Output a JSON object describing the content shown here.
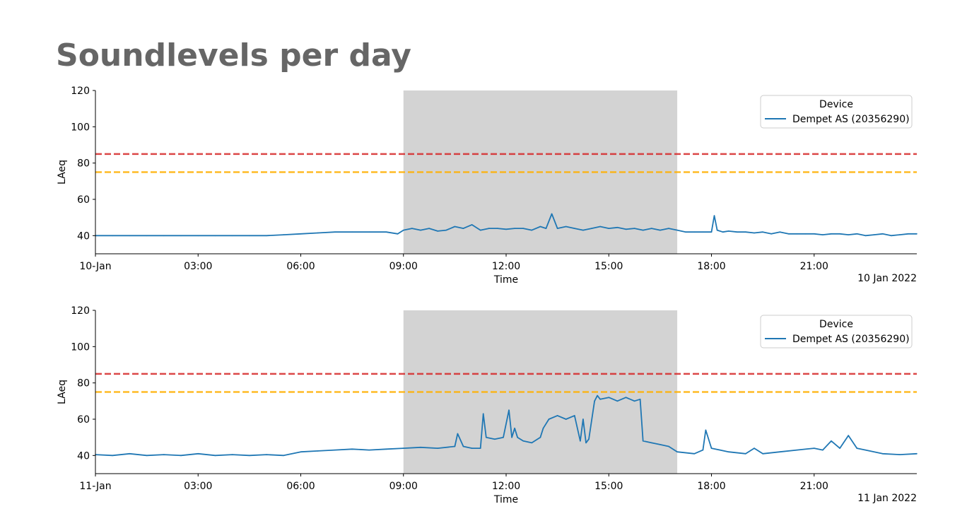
{
  "title": "Soundlevels per day",
  "colors": {
    "series": "#1f77b4",
    "threshold_high": "#d62728",
    "threshold_low": "#ffb000",
    "shaded_period": "#d3d3d3"
  },
  "chart_data": [
    {
      "type": "line",
      "xlabel": "Time",
      "ylabel": "LAeq",
      "date_label": "10 Jan 2022",
      "xlim": [
        "00:00",
        "24:00"
      ],
      "ylim": [
        30,
        120
      ],
      "yticks": [
        40,
        60,
        80,
        100,
        120
      ],
      "xtick_labels": [
        "10-Jan",
        "03:00",
        "06:00",
        "09:00",
        "12:00",
        "15:00",
        "18:00",
        "21:00"
      ],
      "shaded_period": [
        "09:00",
        "17:00"
      ],
      "thresholds": [
        {
          "value": 85,
          "style": "dashed",
          "color": "#d62728"
        },
        {
          "value": 75,
          "style": "dashed",
          "color": "#ffb000"
        }
      ],
      "legend": {
        "title": "Device",
        "position": "top-right"
      },
      "grid": false,
      "series": [
        {
          "name": "Dempet AS (20356290)",
          "x": [
            "00:00",
            "00:30",
            "01:00",
            "01:30",
            "02:00",
            "02:30",
            "03:00",
            "03:30",
            "04:00",
            "04:30",
            "05:00",
            "05:30",
            "06:00",
            "06:30",
            "07:00",
            "07:30",
            "08:00",
            "08:30",
            "08:50",
            "09:00",
            "09:15",
            "09:30",
            "09:45",
            "10:00",
            "10:15",
            "10:30",
            "10:45",
            "11:00",
            "11:15",
            "11:30",
            "11:45",
            "12:00",
            "12:15",
            "12:30",
            "12:45",
            "13:00",
            "13:10",
            "13:20",
            "13:30",
            "13:45",
            "14:00",
            "14:15",
            "14:30",
            "14:45",
            "15:00",
            "15:15",
            "15:30",
            "15:45",
            "16:00",
            "16:15",
            "16:30",
            "16:45",
            "17:00",
            "17:15",
            "17:30",
            "17:45",
            "18:00",
            "18:05",
            "18:10",
            "18:20",
            "18:30",
            "18:45",
            "19:00",
            "19:15",
            "19:30",
            "19:45",
            "20:00",
            "20:15",
            "20:30",
            "20:45",
            "21:00",
            "21:15",
            "21:30",
            "21:45",
            "22:00",
            "22:15",
            "22:30",
            "22:45",
            "23:00",
            "23:15",
            "23:30",
            "23:45",
            "24:00"
          ],
          "values": [
            40,
            40,
            40,
            40,
            40,
            40,
            40,
            40,
            40,
            40,
            40,
            40.5,
            41,
            41.5,
            42,
            42,
            42,
            42,
            41,
            43,
            44,
            43,
            44,
            42.5,
            43,
            45,
            44,
            46,
            43,
            44,
            44,
            43.5,
            44,
            44,
            43,
            45,
            44,
            52,
            44,
            45,
            44,
            43,
            44,
            45,
            44,
            44.5,
            43.5,
            44,
            43,
            44,
            43,
            44,
            43,
            42,
            42,
            42,
            42,
            51,
            43,
            42,
            42.5,
            42,
            42,
            41.5,
            42,
            41,
            42,
            41,
            41,
            41,
            41,
            40.5,
            41,
            41,
            40.5,
            41,
            40,
            40.5,
            41,
            40,
            40.5,
            41,
            41
          ]
        }
      ]
    },
    {
      "type": "line",
      "xlabel": "Time",
      "ylabel": "LAeq",
      "date_label": "11 Jan 2022",
      "xlim": [
        "00:00",
        "24:00"
      ],
      "ylim": [
        30,
        120
      ],
      "yticks": [
        40,
        60,
        80,
        100,
        120
      ],
      "xtick_labels": [
        "11-Jan",
        "03:00",
        "06:00",
        "09:00",
        "12:00",
        "15:00",
        "18:00",
        "21:00"
      ],
      "shaded_period": [
        "09:00",
        "17:00"
      ],
      "thresholds": [
        {
          "value": 85,
          "style": "dashed",
          "color": "#d62728"
        },
        {
          "value": 75,
          "style": "dashed",
          "color": "#ffb000"
        }
      ],
      "legend": {
        "title": "Device",
        "position": "top-right"
      },
      "grid": false,
      "series": [
        {
          "name": "Dempet AS (20356290)",
          "x": [
            "00:00",
            "00:30",
            "01:00",
            "01:30",
            "02:00",
            "02:30",
            "03:00",
            "03:30",
            "04:00",
            "04:30",
            "05:00",
            "05:30",
            "06:00",
            "06:30",
            "07:00",
            "07:30",
            "08:00",
            "08:30",
            "09:00",
            "09:30",
            "10:00",
            "10:30",
            "10:35",
            "10:45",
            "11:00",
            "11:15",
            "11:20",
            "11:25",
            "11:40",
            "11:55",
            "12:05",
            "12:10",
            "12:15",
            "12:20",
            "12:30",
            "12:45",
            "13:00",
            "13:05",
            "13:15",
            "13:30",
            "13:45",
            "14:00",
            "14:10",
            "14:15",
            "14:20",
            "14:25",
            "14:35",
            "14:40",
            "14:45",
            "15:00",
            "15:15",
            "15:30",
            "15:45",
            "15:55",
            "16:00",
            "16:15",
            "16:30",
            "16:45",
            "17:00",
            "17:30",
            "17:45",
            "17:50",
            "18:00",
            "18:30",
            "19:00",
            "19:15",
            "19:30",
            "20:00",
            "20:30",
            "21:00",
            "21:15",
            "21:30",
            "21:45",
            "22:00",
            "22:15",
            "22:30",
            "23:00",
            "23:30",
            "24:00"
          ],
          "values": [
            40.5,
            40,
            41,
            40,
            40.5,
            40,
            41,
            40,
            40.5,
            40,
            40.5,
            40,
            42,
            42.5,
            43,
            43.5,
            43,
            43.5,
            44,
            44.5,
            44,
            45,
            52,
            45,
            44,
            44,
            63,
            50,
            49,
            50,
            65,
            50,
            55,
            50,
            48,
            47,
            50,
            55,
            60,
            62,
            60,
            62,
            48,
            60,
            47,
            49,
            70,
            73,
            71,
            72,
            70,
            72,
            70,
            71,
            48,
            47,
            46,
            45,
            42,
            41,
            43,
            54,
            44,
            42,
            41,
            44,
            41,
            42,
            43,
            44,
            43,
            48,
            44,
            51,
            44,
            43,
            41,
            40.5,
            41
          ]
        }
      ]
    }
  ]
}
